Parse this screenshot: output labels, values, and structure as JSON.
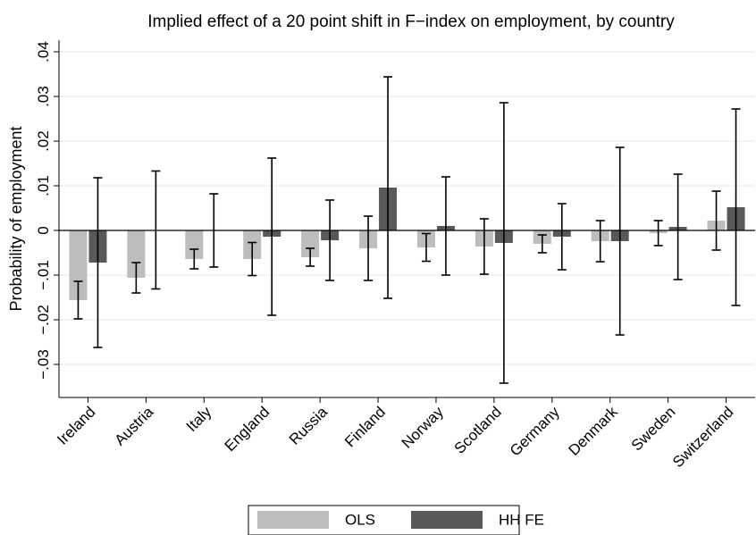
{
  "chart_data": {
    "type": "bar",
    "title": "Implied effect of a 20 point shift in F−index on employment, by country",
    "y_label": "Probability of employment",
    "categories": [
      "Ireland",
      "Austria",
      "Italy",
      "England",
      "Russia",
      "Finland",
      "Norway",
      "Scotland",
      "Germany",
      "Denmark",
      "Sweden",
      "Switzerland"
    ],
    "series": [
      {
        "name": "OLS",
        "color": "#bdbdbd",
        "values": [
          -0.0156,
          -0.0106,
          -0.0064,
          -0.0064,
          -0.006,
          -0.004,
          -0.0038,
          -0.0036,
          -0.003,
          -0.0024,
          -0.0006,
          0.0022
        ],
        "errors": [
          0.0042,
          0.0034,
          0.0022,
          0.0037,
          0.002,
          0.0072,
          0.0031,
          0.0062,
          0.002,
          0.0046,
          0.0028,
          0.0066
        ]
      },
      {
        "name": "HH FE",
        "color": "#595959",
        "values": [
          -0.0072,
          0.0001,
          0.0,
          -0.0014,
          -0.0022,
          0.0096,
          0.001,
          -0.0028,
          -0.0014,
          -0.0024,
          0.0008,
          0.0052
        ],
        "errors": [
          0.019,
          0.0132,
          0.0082,
          0.0176,
          0.009,
          0.0248,
          0.011,
          0.0314,
          0.0074,
          0.021,
          0.0118,
          0.022
        ]
      }
    ],
    "ylim": [
      -0.0374,
      0.0426
    ],
    "yticks": [
      {
        "value": -0.03,
        "label": "−.03"
      },
      {
        "value": -0.02,
        "label": "−.02"
      },
      {
        "value": -0.01,
        "label": "−.01"
      },
      0,
      {
        "value": 0.01,
        "label": ".01"
      },
      {
        "value": 0.02,
        "label": ".02"
      },
      {
        "value": 0.03,
        "label": ".03"
      },
      {
        "value": 0.04,
        "label": ".04"
      }
    ],
    "grid": true
  }
}
